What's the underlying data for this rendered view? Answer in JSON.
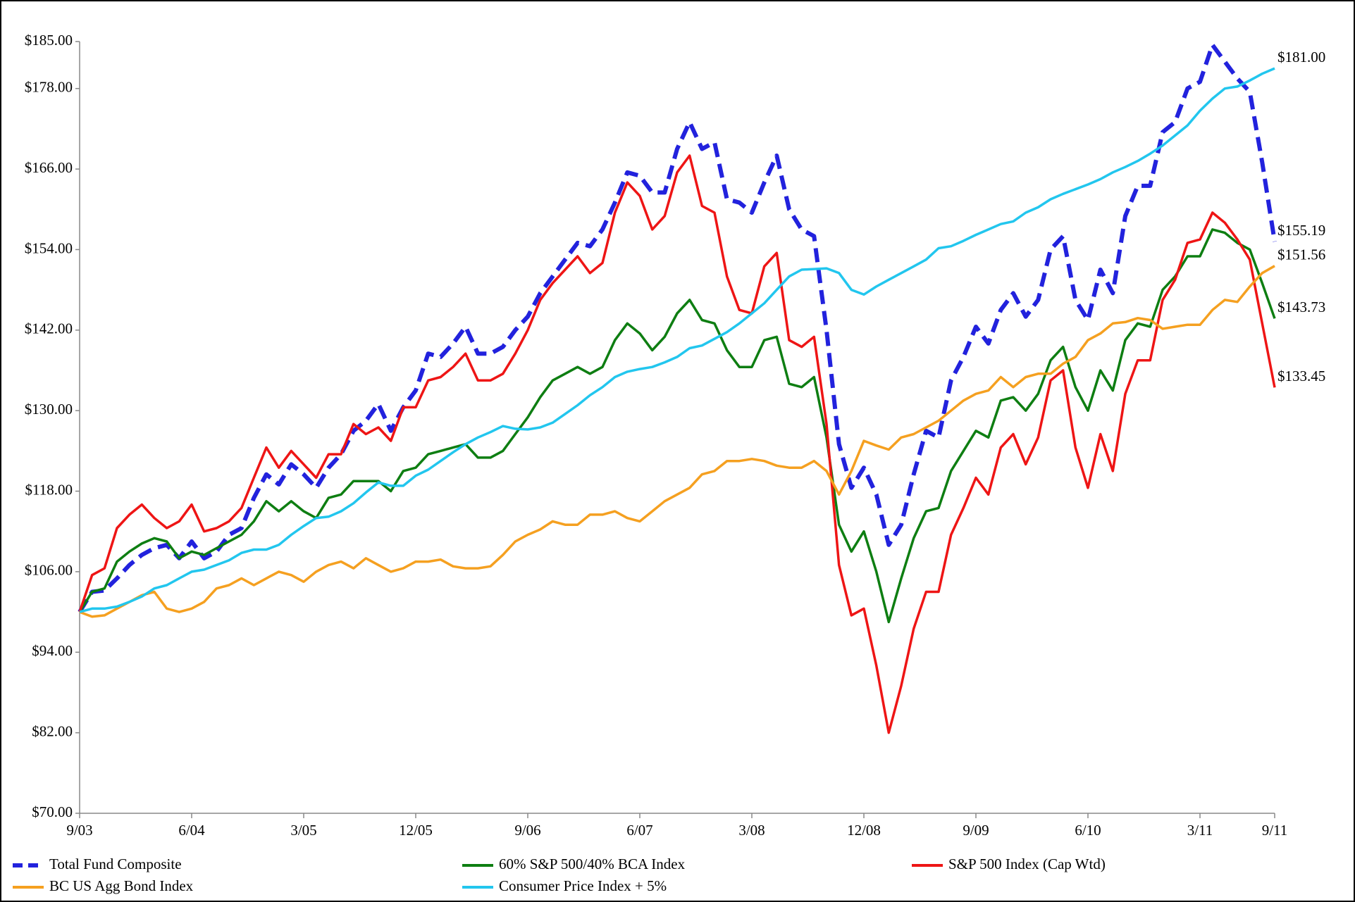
{
  "chart_data": {
    "type": "line",
    "categories": [
      "9/03",
      null,
      null,
      null,
      null,
      null,
      null,
      null,
      null,
      "6/04",
      null,
      null,
      null,
      null,
      null,
      null,
      null,
      null,
      "3/05",
      null,
      null,
      null,
      null,
      null,
      null,
      null,
      null,
      "12/05",
      null,
      null,
      null,
      null,
      null,
      null,
      null,
      null,
      "9/06",
      null,
      null,
      null,
      null,
      null,
      null,
      null,
      null,
      "6/07",
      null,
      null,
      null,
      null,
      null,
      null,
      null,
      null,
      "3/08",
      null,
      null,
      null,
      null,
      null,
      null,
      null,
      null,
      "12/08",
      null,
      null,
      null,
      null,
      null,
      null,
      null,
      null,
      "9/09",
      null,
      null,
      null,
      null,
      null,
      null,
      null,
      null,
      "6/10",
      null,
      null,
      null,
      null,
      null,
      null,
      null,
      null,
      "3/11",
      null,
      null,
      null,
      null,
      null,
      "9/11"
    ],
    "ylim": [
      70,
      185
    ],
    "yticks": [
      {
        "value": 70,
        "label": "$70.00"
      },
      {
        "value": 82,
        "label": "$82.00"
      },
      {
        "value": 94,
        "label": "$94.00"
      },
      {
        "value": 106,
        "label": "$106.00"
      },
      {
        "value": 118,
        "label": "$118.00"
      },
      {
        "value": 130,
        "label": "$130.00"
      },
      {
        "value": 142,
        "label": "$142.00"
      },
      {
        "value": 154,
        "label": "$154.00"
      },
      {
        "value": 166,
        "label": "$166.00"
      },
      {
        "value": 178,
        "label": "$178.00"
      },
      {
        "value": 185,
        "label": "$185.00"
      }
    ],
    "grid": false,
    "legend": "bottom",
    "series": [
      {
        "name": "Total Fund Composite",
        "color": "#2222dd",
        "dashed": true,
        "values": [
          100,
          103,
          103.2,
          105,
          107,
          108.5,
          109.5,
          110,
          108,
          110.5,
          108,
          109,
          111.5,
          112.5,
          117,
          120.5,
          119,
          122,
          120.5,
          118.5,
          121.5,
          123.5,
          127,
          128.5,
          131,
          127,
          130.5,
          133,
          138.5,
          138,
          140,
          142.5,
          138.5,
          138.5,
          139.5,
          142,
          144,
          147.5,
          150,
          152.5,
          155,
          154.5,
          157,
          161,
          165.5,
          165,
          162.5,
          162.5,
          169,
          173,
          169,
          170,
          161.5,
          161,
          159.5,
          164,
          168,
          160,
          157,
          156,
          142,
          125,
          118.5,
          121.5,
          117.5,
          110,
          113,
          120.5,
          127,
          126,
          134.5,
          138,
          142.5,
          140,
          145,
          147.5,
          144,
          146.5,
          154,
          156,
          146.5,
          143.5,
          151,
          147.5,
          159,
          163.5,
          163.5,
          171.5,
          173,
          178,
          179,
          184.5,
          182,
          179.5,
          177.5,
          167,
          155.19
        ],
        "value_labels": [
          null,
          null,
          null,
          null,
          null,
          null,
          null,
          null,
          null,
          null,
          null,
          null,
          null,
          null,
          null,
          null,
          null,
          null,
          null,
          null,
          null,
          null,
          null,
          null,
          null,
          null,
          null,
          null,
          null,
          null,
          null,
          null,
          null,
          null,
          null,
          null,
          null,
          null,
          null,
          null,
          null,
          null,
          null,
          null,
          null,
          null,
          null,
          null,
          null,
          null,
          null,
          null,
          null,
          null,
          null,
          null,
          null,
          null,
          null,
          null,
          null,
          null,
          null,
          null,
          null,
          null,
          null,
          null,
          null,
          null,
          null,
          null,
          null,
          null,
          null,
          null,
          null,
          null,
          null,
          null,
          null,
          null,
          null,
          null,
          null,
          null,
          null,
          null,
          null,
          null,
          null,
          null,
          null,
          null,
          null,
          null,
          "$155.19"
        ]
      },
      {
        "name": "60% S&P 500/40% BCA Index",
        "color": "#0e7e12",
        "values": [
          100,
          103,
          103.5,
          107.5,
          109,
          110.2,
          111,
          110.5,
          108,
          109,
          108.5,
          109.5,
          110.5,
          111.5,
          113.5,
          116.5,
          115,
          116.5,
          115,
          114,
          117,
          117.5,
          119.5,
          119.5,
          119.5,
          118,
          121,
          121.5,
          123.5,
          124,
          124.5,
          125,
          123,
          123,
          124,
          126.5,
          129,
          132,
          134.5,
          135.5,
          136.5,
          135.5,
          136.5,
          140.5,
          143,
          141.5,
          139,
          141,
          144.5,
          146.5,
          143.5,
          143,
          139,
          136.5,
          136.5,
          140.5,
          141,
          134,
          133.5,
          135,
          126,
          113,
          109,
          112,
          106,
          98.5,
          105,
          111,
          115,
          115.5,
          121,
          124,
          127,
          126,
          131.5,
          132,
          130,
          132.5,
          137.5,
          139.5,
          133.5,
          130,
          136,
          133,
          140.5,
          143,
          142.5,
          148,
          150,
          153,
          153,
          157,
          156.5,
          155,
          154,
          149,
          143.73
        ],
        "value_labels": [
          null,
          null,
          null,
          null,
          null,
          null,
          null,
          null,
          null,
          null,
          null,
          null,
          null,
          null,
          null,
          null,
          null,
          null,
          null,
          null,
          null,
          null,
          null,
          null,
          null,
          null,
          null,
          null,
          null,
          null,
          null,
          null,
          null,
          null,
          null,
          null,
          null,
          null,
          null,
          null,
          null,
          null,
          null,
          null,
          null,
          null,
          null,
          null,
          null,
          null,
          null,
          null,
          null,
          null,
          null,
          null,
          null,
          null,
          null,
          null,
          null,
          null,
          null,
          null,
          null,
          null,
          null,
          null,
          null,
          null,
          null,
          null,
          null,
          null,
          null,
          null,
          null,
          null,
          null,
          null,
          null,
          null,
          null,
          null,
          null,
          null,
          null,
          null,
          null,
          null,
          null,
          null,
          null,
          null,
          null,
          null,
          "$143.73"
        ]
      },
      {
        "name": "S&P 500 Index (Cap Wtd)",
        "color": "#ee1515",
        "values": [
          100,
          105.5,
          106.5,
          112.5,
          114.5,
          116,
          114,
          112.5,
          113.5,
          116,
          112,
          112.5,
          113.5,
          115.5,
          120,
          124.5,
          121.5,
          124,
          122,
          120,
          123.5,
          123.5,
          128,
          126.5,
          127.5,
          125.5,
          130.5,
          130.5,
          134.5,
          135,
          136.5,
          138.5,
          134.5,
          134.5,
          135.5,
          138.5,
          142,
          146.5,
          149,
          151,
          153,
          150.5,
          152,
          159.5,
          164,
          162,
          157,
          159,
          165.5,
          168,
          160.5,
          159.5,
          150,
          145,
          144.5,
          151.5,
          153.5,
          140.5,
          139.5,
          141,
          128,
          107,
          99.5,
          100.5,
          92,
          82,
          89,
          97.5,
          103,
          103,
          111.5,
          115.5,
          120,
          117.5,
          124.5,
          126.5,
          122,
          126,
          134.5,
          136,
          124.5,
          118.5,
          126.5,
          121,
          132.5,
          137.5,
          137.5,
          146.5,
          149.5,
          155,
          155.5,
          159.5,
          158,
          155.5,
          152.5,
          143,
          133.45
        ],
        "value_labels": [
          null,
          null,
          null,
          null,
          null,
          null,
          null,
          null,
          null,
          null,
          null,
          null,
          null,
          null,
          null,
          null,
          null,
          null,
          null,
          null,
          null,
          null,
          null,
          null,
          null,
          null,
          null,
          null,
          null,
          null,
          null,
          null,
          null,
          null,
          null,
          null,
          null,
          null,
          null,
          null,
          null,
          null,
          null,
          null,
          null,
          null,
          null,
          null,
          null,
          null,
          null,
          null,
          null,
          null,
          null,
          null,
          null,
          null,
          null,
          null,
          null,
          null,
          null,
          null,
          null,
          null,
          null,
          null,
          null,
          null,
          null,
          null,
          null,
          null,
          null,
          null,
          null,
          null,
          null,
          null,
          null,
          null,
          null,
          null,
          null,
          null,
          null,
          null,
          null,
          null,
          null,
          null,
          null,
          null,
          null,
          null,
          "$133.45"
        ]
      },
      {
        "name": "BC US Agg Bond Index",
        "color": "#f5a020",
        "values": [
          100,
          99.3,
          99.5,
          100.5,
          101.5,
          102.5,
          103,
          100.5,
          100,
          100.5,
          101.5,
          103.5,
          104,
          105,
          104,
          105,
          106,
          105.5,
          104.5,
          106,
          107,
          107.5,
          106.5,
          108,
          107,
          106,
          106.5,
          107.5,
          107.5,
          107.8,
          106.8,
          106.5,
          106.5,
          106.8,
          108.5,
          110.5,
          111.5,
          112.3,
          113.5,
          113,
          113,
          114.5,
          114.5,
          115,
          114,
          113.5,
          115,
          116.5,
          117.5,
          118.5,
          120.5,
          121,
          122.5,
          122.5,
          122.8,
          122.5,
          121.8,
          121.5,
          121.5,
          122.5,
          121,
          117.5,
          121,
          125.5,
          124.8,
          124.2,
          126,
          126.5,
          127.5,
          128.5,
          130,
          131.5,
          132.5,
          133,
          135,
          133.5,
          135,
          135.5,
          135.5,
          137,
          138,
          140.5,
          141.5,
          143,
          143.2,
          143.8,
          143.5,
          142.2,
          142.5,
          142.8,
          142.8,
          145,
          146.5,
          146.2,
          148.5,
          150.5,
          151.56
        ],
        "value_labels": [
          null,
          null,
          null,
          null,
          null,
          null,
          null,
          null,
          null,
          null,
          null,
          null,
          null,
          null,
          null,
          null,
          null,
          null,
          null,
          null,
          null,
          null,
          null,
          null,
          null,
          null,
          null,
          null,
          null,
          null,
          null,
          null,
          null,
          null,
          null,
          null,
          null,
          null,
          null,
          null,
          null,
          null,
          null,
          null,
          null,
          null,
          null,
          null,
          null,
          null,
          null,
          null,
          null,
          null,
          null,
          null,
          null,
          null,
          null,
          null,
          null,
          null,
          null,
          null,
          null,
          null,
          null,
          null,
          null,
          null,
          null,
          null,
          null,
          null,
          null,
          null,
          null,
          null,
          null,
          null,
          null,
          null,
          null,
          null,
          null,
          null,
          null,
          null,
          null,
          null,
          null,
          null,
          null,
          null,
          null,
          null,
          "$151.56"
        ]
      },
      {
        "name": "Consumer Price Index + 5%",
        "color": "#22c6ee",
        "values": [
          100,
          100.5,
          100.5,
          100.8,
          101.5,
          102.3,
          103.5,
          104,
          105,
          106,
          106.3,
          107,
          107.7,
          108.8,
          109.3,
          109.3,
          110,
          111.5,
          112.8,
          114,
          114.2,
          115,
          116.2,
          117.8,
          119.3,
          118.8,
          118.8,
          120.3,
          121.2,
          122.5,
          123.8,
          125,
          126,
          126.8,
          127.7,
          127.3,
          127.2,
          127.5,
          128.2,
          129.5,
          130.8,
          132.3,
          133.5,
          135,
          135.8,
          136.2,
          136.5,
          137.2,
          138,
          139.3,
          139.7,
          140.7,
          141.7,
          143,
          144.5,
          146,
          148,
          150,
          151,
          151.1,
          151.2,
          150.5,
          148,
          147.3,
          148.5,
          149.5,
          150.5,
          151.5,
          152.5,
          154.2,
          154.5,
          155.3,
          156.2,
          157,
          157.8,
          158.2,
          159.5,
          160.3,
          161.5,
          162.3,
          163,
          163.7,
          164.5,
          165.5,
          166.3,
          167.2,
          168.3,
          169.5,
          171,
          172.5,
          174.7,
          176.5,
          178,
          178.3,
          179.2,
          180.2,
          181
        ],
        "value_labels": [
          null,
          null,
          null,
          null,
          null,
          null,
          null,
          null,
          null,
          null,
          null,
          null,
          null,
          null,
          null,
          null,
          null,
          null,
          null,
          null,
          null,
          null,
          null,
          null,
          null,
          null,
          null,
          null,
          null,
          null,
          null,
          null,
          null,
          null,
          null,
          null,
          null,
          null,
          null,
          null,
          null,
          null,
          null,
          null,
          null,
          null,
          null,
          null,
          null,
          null,
          null,
          null,
          null,
          null,
          null,
          null,
          null,
          null,
          null,
          null,
          null,
          null,
          null,
          null,
          null,
          null,
          null,
          null,
          null,
          null,
          null,
          null,
          null,
          null,
          null,
          null,
          null,
          null,
          null,
          null,
          null,
          null,
          null,
          null,
          null,
          null,
          null,
          null,
          null,
          null,
          null,
          null,
          null,
          null,
          null,
          null,
          "$181.00"
        ]
      }
    ]
  }
}
